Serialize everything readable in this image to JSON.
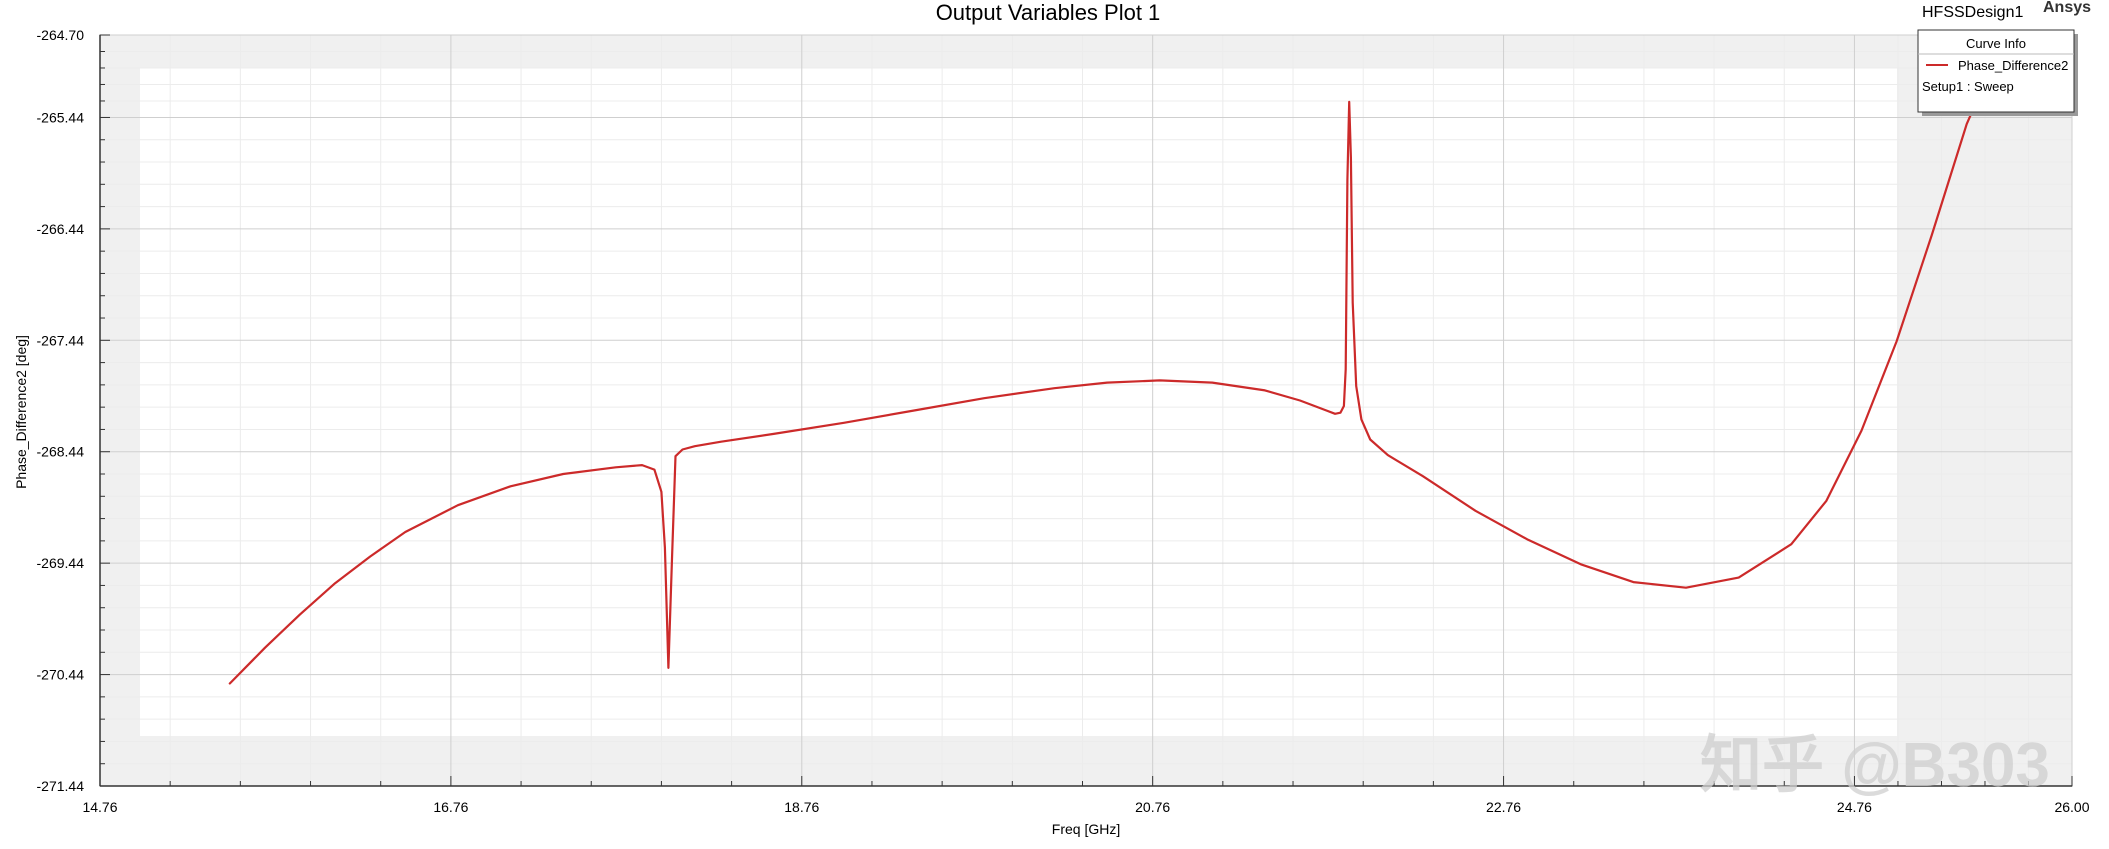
{
  "window": {
    "design_name": "HFSSDesign1",
    "brand": "Ansys",
    "watermark": "知乎 @B303"
  },
  "chart_data": {
    "type": "line",
    "title": "Output Variables Plot 1",
    "xlabel": "Freq [GHz]",
    "ylabel": "Phase_Difference2 [deg]",
    "xlim": [
      14.76,
      26.0
    ],
    "ylim": [
      -271.44,
      -264.7
    ],
    "xticks": [
      14.76,
      16.76,
      18.76,
      20.76,
      22.76,
      24.76,
      26.0
    ],
    "xtick_labels": [
      "14.76",
      "16.76",
      "18.76",
      "20.76",
      "22.76",
      "24.76",
      "26.00"
    ],
    "yticks": [
      -264.7,
      -265.44,
      -266.44,
      -267.44,
      -268.44,
      -269.44,
      -270.44,
      -271.44
    ],
    "ytick_labels": [
      "-264.70",
      "-265.44",
      "-266.44",
      "-267.44",
      "-268.44",
      "-269.44",
      "-270.44",
      "-271.44"
    ],
    "grid": true,
    "legend": {
      "placement": "top-right",
      "title": "Curve Info",
      "entries": [
        {
          "label": "Phase_Difference2",
          "sublabel": "Setup1 : Sweep",
          "color": "#cc2a2a"
        }
      ]
    },
    "series": [
      {
        "name": "Phase_Difference2",
        "color": "#cc2a2a",
        "x": [
          15.5,
          15.7,
          15.9,
          16.1,
          16.3,
          16.5,
          16.8,
          17.1,
          17.4,
          17.7,
          17.85,
          17.92,
          17.96,
          17.98,
          18.0,
          18.02,
          18.04,
          18.08,
          18.15,
          18.3,
          18.6,
          19.0,
          19.4,
          19.8,
          20.2,
          20.5,
          20.8,
          21.1,
          21.4,
          21.6,
          21.75,
          21.8,
          21.83,
          21.85,
          21.86,
          21.87,
          21.88,
          21.89,
          21.9,
          21.92,
          21.95,
          22.0,
          22.1,
          22.3,
          22.6,
          22.9,
          23.2,
          23.5,
          23.8,
          24.1,
          24.4,
          24.6,
          24.8,
          25.0,
          25.2,
          25.4,
          25.55
        ],
        "values": [
          -270.52,
          -270.2,
          -269.9,
          -269.62,
          -269.38,
          -269.16,
          -268.92,
          -268.75,
          -268.64,
          -268.58,
          -268.56,
          -268.6,
          -268.8,
          -269.3,
          -270.38,
          -269.4,
          -268.48,
          -268.42,
          -268.39,
          -268.35,
          -268.28,
          -268.18,
          -268.07,
          -267.96,
          -267.87,
          -267.82,
          -267.8,
          -267.82,
          -267.89,
          -267.98,
          -268.07,
          -268.1,
          -268.09,
          -268.03,
          -267.7,
          -266.0,
          -265.3,
          -265.8,
          -267.1,
          -267.85,
          -268.15,
          -268.33,
          -268.47,
          -268.66,
          -268.97,
          -269.23,
          -269.45,
          -269.61,
          -269.66,
          -269.57,
          -269.27,
          -268.88,
          -268.25,
          -267.45,
          -266.5,
          -265.5,
          -264.96
        ]
      }
    ]
  }
}
